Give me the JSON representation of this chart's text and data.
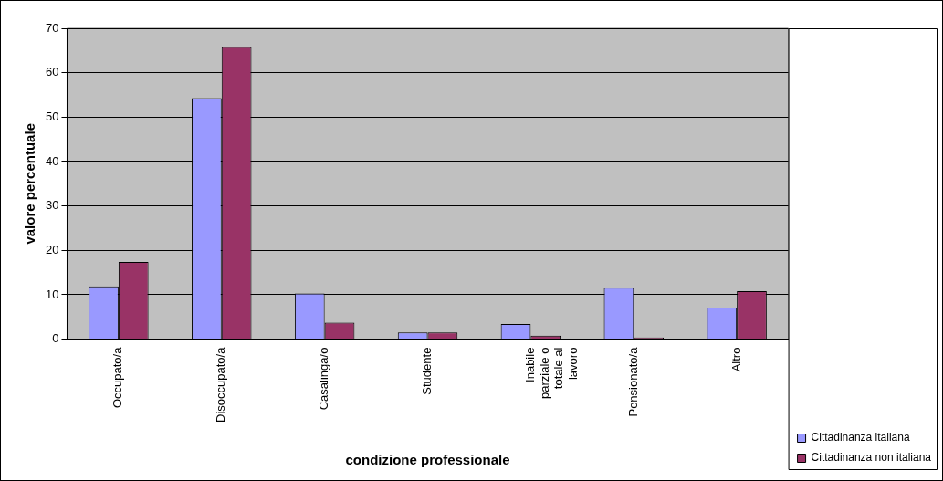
{
  "chart_data": {
    "type": "bar",
    "xlabel": "condizione professionale",
    "ylabel": "valore percentuale",
    "categories": [
      "Occupato/a",
      "Disoccupato/a",
      "Casalinga/o",
      "Studente",
      "Inabile parziale o totale al lavoro",
      "Pensionato/a",
      "Altro"
    ],
    "series": [
      {
        "name": "Cittadinanza italiana",
        "color": "#9999ff",
        "values": [
          11.9,
          54.3,
          10.3,
          1.5,
          3.4,
          11.6,
          7.1
        ]
      },
      {
        "name": "Cittadinanza non italiana",
        "color": "#993366",
        "values": [
          17.4,
          65.8,
          3.7,
          1.5,
          0.8,
          0.4,
          10.8
        ]
      }
    ],
    "ylim": [
      0,
      70
    ],
    "yticks": [
      0,
      10,
      20,
      30,
      40,
      50,
      60,
      70
    ],
    "grid": "y",
    "legend": "bottom right"
  }
}
